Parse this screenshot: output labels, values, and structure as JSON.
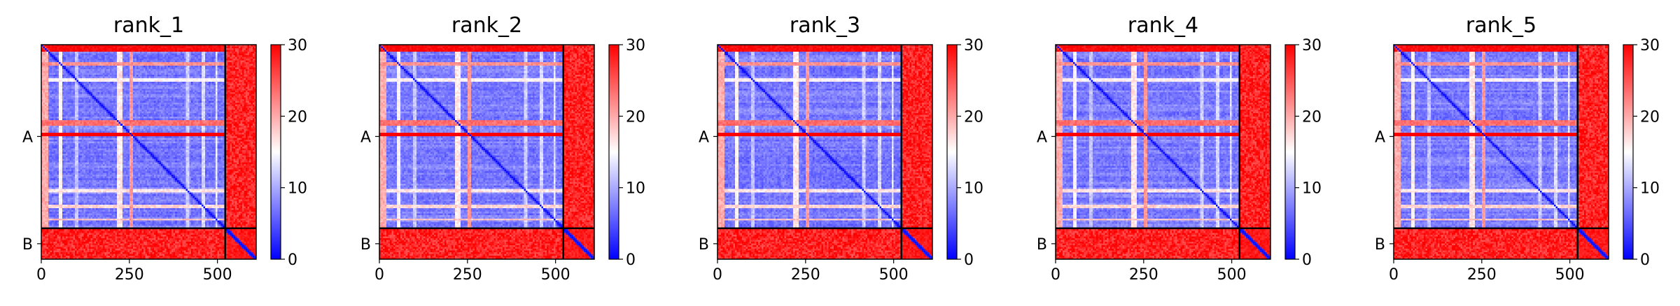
{
  "chart_data": [
    {
      "type": "heatmap",
      "title": "rank_1",
      "x_ticks": [
        0,
        250,
        500
      ],
      "chain_labels": [
        "A",
        "B"
      ],
      "chain_boundary": 522,
      "length": 610,
      "colorbar": {
        "range": [
          0,
          30
        ],
        "ticks": [
          0,
          10,
          20,
          30
        ]
      },
      "colormap": {
        "low": "#0000ff",
        "mid": "#ffffff",
        "high": "#ff0000"
      }
    },
    {
      "type": "heatmap",
      "title": "rank_2",
      "x_ticks": [
        0,
        250,
        500
      ],
      "chain_labels": [
        "A",
        "B"
      ],
      "chain_boundary": 522,
      "length": 610,
      "colorbar": {
        "range": [
          0,
          30
        ],
        "ticks": [
          0,
          10,
          20,
          30
        ]
      },
      "colormap": {
        "low": "#0000ff",
        "mid": "#ffffff",
        "high": "#ff0000"
      }
    },
    {
      "type": "heatmap",
      "title": "rank_3",
      "x_ticks": [
        0,
        250,
        500
      ],
      "chain_labels": [
        "A",
        "B"
      ],
      "chain_boundary": 522,
      "length": 610,
      "colorbar": {
        "range": [
          0,
          30
        ],
        "ticks": [
          0,
          10,
          20,
          30
        ]
      },
      "colormap": {
        "low": "#0000ff",
        "mid": "#ffffff",
        "high": "#ff0000"
      }
    },
    {
      "type": "heatmap",
      "title": "rank_4",
      "x_ticks": [
        0,
        250,
        500
      ],
      "chain_labels": [
        "A",
        "B"
      ],
      "chain_boundary": 522,
      "length": 610,
      "colorbar": {
        "range": [
          0,
          30
        ],
        "ticks": [
          0,
          10,
          20,
          30
        ]
      },
      "colormap": {
        "low": "#0000ff",
        "mid": "#ffffff",
        "high": "#ff0000"
      }
    },
    {
      "type": "heatmap",
      "title": "rank_5",
      "x_ticks": [
        0,
        250,
        500
      ],
      "chain_labels": [
        "A",
        "B"
      ],
      "chain_boundary": 522,
      "length": 610,
      "colorbar": {
        "range": [
          0,
          30
        ],
        "ticks": [
          0,
          10,
          20,
          30
        ]
      },
      "colormap": {
        "low": "#0000ff",
        "mid": "#ffffff",
        "high": "#ff0000"
      }
    }
  ]
}
